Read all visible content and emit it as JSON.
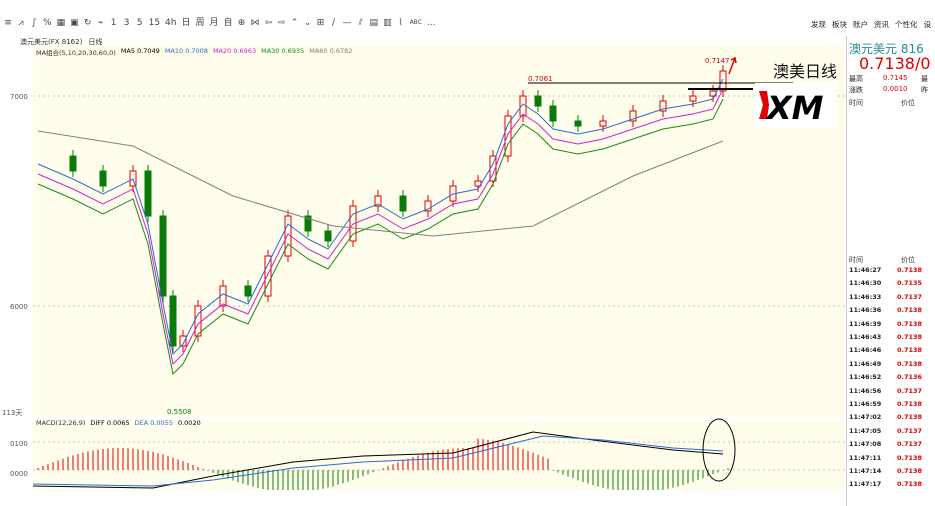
{
  "toolbar": {
    "icons": [
      "line-chart-icon",
      "tick-icon",
      "pct-icon",
      "table-icon",
      "save-icon",
      "refresh-icon",
      "minute-icon",
      "1",
      "3",
      "5",
      "15",
      "4h",
      "日",
      "周",
      "月",
      "自",
      "circle-icon",
      "bowtie-icon",
      "left-icon",
      "right-icon",
      "up-icon",
      "down-icon",
      "grid-icon",
      "draw-line-icon",
      "hline-icon",
      "slash-icon",
      "panel1-icon",
      "panel2-icon",
      "wave-icon",
      "ABC",
      "..."
    ],
    "labels": [
      "1",
      "3",
      "5",
      "15",
      "4h",
      "日",
      "周",
      "月",
      "自"
    ],
    "right_links": [
      "发现",
      "板块",
      "账户",
      "资讯",
      "个性化",
      "设"
    ]
  },
  "chart_header": {
    "symbol": "澳元美元(FX 8162)",
    "period": "日线"
  },
  "ma": {
    "label": "MA组合(5,10,20,30,60,0)",
    "ma5": "MA5 0.7049",
    "ma10": "MA10 0.7008",
    "ma20": "MA20 0.6963",
    "ma30": "MA30 0.6935",
    "ma60": "MA60 0.6782",
    "colors": {
      "ma5": "#000000",
      "ma10": "#2b6cd6",
      "ma20": "#d020d0",
      "ma30": "#1a8a1a",
      "ma60": "#808080"
    }
  },
  "axis": {
    "y_labels": [
      "7000",
      "6000"
    ],
    "macd_labels": [
      "0100",
      "0000"
    ],
    "days_label": "113天"
  },
  "annotations": {
    "high_label": "0.7061",
    "latest_high": "0.7147",
    "low_label": "0.5508",
    "overlay_title": "澳美日线",
    "brand": "XM"
  },
  "macd": {
    "label": "MACD(12,26,9)",
    "diff": "DIFF 0.0065",
    "dea": "DEA 0.0055",
    "macd_value": "0.0020"
  },
  "side": {
    "name": "澳元美元",
    "code_partial": "816",
    "price": "0.7138/0",
    "high_label": "最高",
    "high_value": "0.7145",
    "change_label": "涨跌",
    "change_value": "0.0010",
    "extra_high_label": "最",
    "extra_prev_label": "昨",
    "col_time": "时间",
    "col_price": "价位",
    "ticks": [
      {
        "time": "11:46:27",
        "price": "0.7138"
      },
      {
        "time": "11:46:30",
        "price": "0.7135"
      },
      {
        "time": "11:46:33",
        "price": "0.7137"
      },
      {
        "time": "11:46:36",
        "price": "0.7138"
      },
      {
        "time": "11:46:39",
        "price": "0.7138"
      },
      {
        "time": "11:46:43",
        "price": "0.7138"
      },
      {
        "time": "11:46:46",
        "price": "0.7138"
      },
      {
        "time": "11:46:49",
        "price": "0.7138"
      },
      {
        "time": "11:46:52",
        "price": "0.7136"
      },
      {
        "time": "11:46:56",
        "price": "0.7137"
      },
      {
        "time": "11:46:59",
        "price": "0.7138"
      },
      {
        "time": "11:47:02",
        "price": "0.7138"
      },
      {
        "time": "11:47:05",
        "price": "0.7137"
      },
      {
        "time": "11:47:08",
        "price": "0.7137"
      },
      {
        "time": "11:47:11",
        "price": "0.7138"
      },
      {
        "time": "11:47:14",
        "price": "0.7138"
      },
      {
        "time": "11:47:17",
        "price": "0.7138"
      }
    ]
  }
}
